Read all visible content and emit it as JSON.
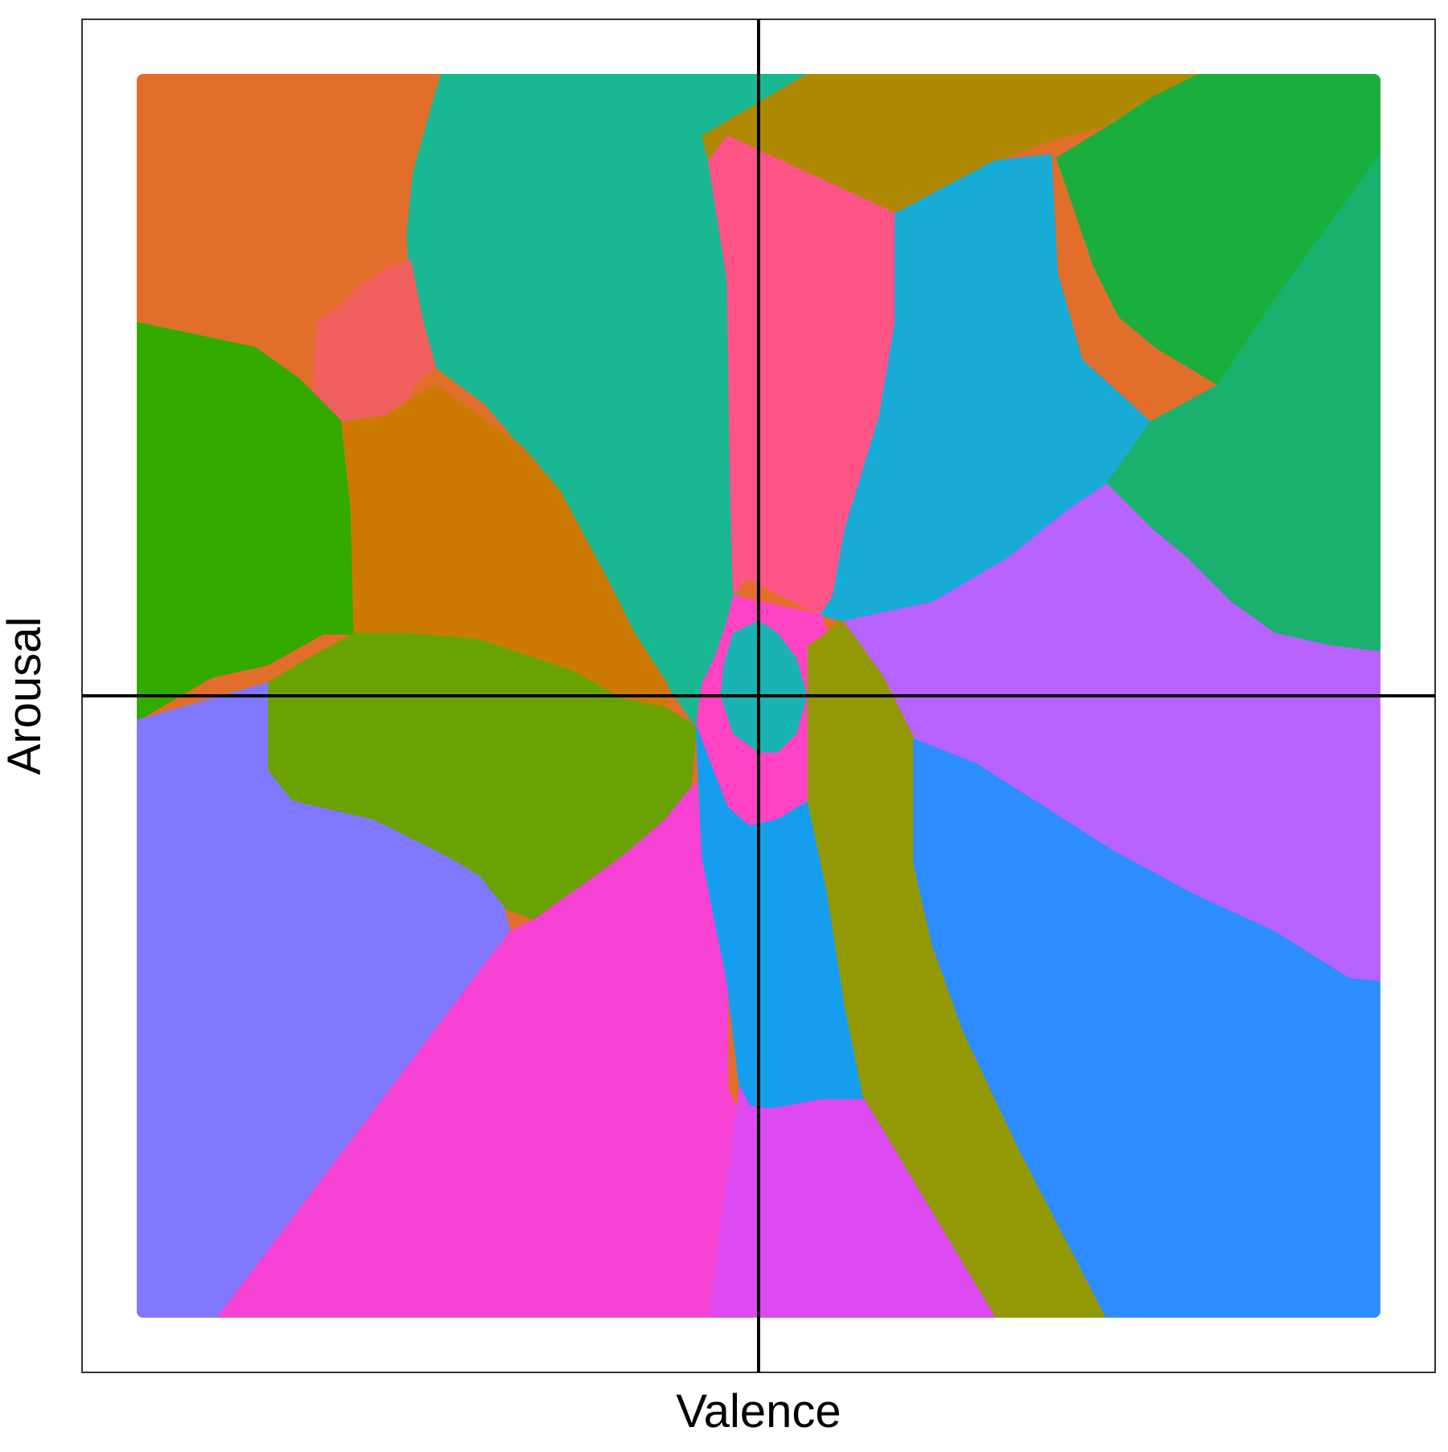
{
  "chart_data": {
    "type": "heatmap",
    "title": "",
    "xlabel": "Valence",
    "ylabel": "Arousal",
    "xlim": [
      -1,
      1
    ],
    "ylim": [
      -1,
      1
    ],
    "grid": false,
    "reference_lines": {
      "x": 0,
      "y": 0
    },
    "region_colors": [
      "#E16E2A",
      "#1AB793",
      "#B08904",
      "#1AAF3C",
      "#F15F5F",
      "#FF5486",
      "#18ABD6",
      "#1AB06D",
      "#33AA00",
      "#CD7A05",
      "#B862FF",
      "#6AA203",
      "#FF43C4",
      "#19B3B3",
      "#8079FF",
      "#F542D2",
      "#169EEE",
      "#939904",
      "#2D8DFF",
      "#DD4AF0"
    ],
    "regions": [
      {
        "color": "#E16E2A",
        "polygon": [
          [
            -1,
            1
          ],
          [
            -0.51,
            1
          ],
          [
            -0.53,
            0.93
          ],
          [
            -0.555,
            0.84
          ],
          [
            -0.565,
            0.74
          ],
          [
            -0.56,
            0.7
          ],
          [
            -0.6,
            0.685
          ],
          [
            -0.64,
            0.66
          ],
          [
            -0.68,
            0.62
          ],
          [
            -0.71,
            0.6
          ],
          [
            -1,
            0.6
          ]
        ]
      },
      {
        "color": "#1AB793",
        "polygon": [
          [
            -0.51,
            1
          ],
          [
            0.08,
            1
          ],
          [
            0.09,
            0.9
          ],
          [
            0.07,
            0.85
          ],
          [
            -0.05,
            0.67
          ],
          [
            -0.035,
            0.16
          ],
          [
            -0.05,
            0.12
          ],
          [
            -0.07,
            0.06
          ],
          [
            -0.1,
            -0.05
          ],
          [
            -0.148,
            0.02
          ],
          [
            -0.2,
            0.1
          ],
          [
            -0.24,
            0.18
          ],
          [
            -0.32,
            0.33
          ],
          [
            -0.38,
            0.4
          ],
          [
            -0.44,
            0.47
          ],
          [
            -0.52,
            0.53
          ],
          [
            -0.555,
            0.56
          ],
          [
            -0.565,
            0.74
          ],
          [
            -0.555,
            0.84
          ],
          [
            -0.53,
            0.93
          ]
        ]
      },
      {
        "color": "#B08904",
        "polygon": [
          [
            0.08,
            1
          ],
          [
            0.71,
            1
          ],
          [
            0.63,
            0.96
          ],
          [
            0.57,
            0.92
          ],
          [
            0.46,
            0.89
          ],
          [
            0.38,
            0.86
          ],
          [
            0.22,
            0.775
          ],
          [
            0.05,
            0.78
          ],
          [
            -0.03,
            0.79
          ],
          [
            -0.08,
            0.86
          ],
          [
            -0.09,
            0.9
          ]
        ]
      },
      {
        "color": "#1AAF3C",
        "polygon": [
          [
            0.71,
            1
          ],
          [
            1,
            1
          ],
          [
            1,
            0.87
          ],
          [
            0.84,
            0.65
          ],
          [
            0.74,
            0.5
          ],
          [
            0.64,
            0.56
          ],
          [
            0.58,
            0.61
          ],
          [
            0.54,
            0.69
          ],
          [
            0.48,
            0.865
          ],
          [
            0.57,
            0.92
          ],
          [
            0.63,
            0.96
          ]
        ]
      },
      {
        "color": "#F15F5F",
        "polygon": [
          [
            -0.71,
            0.6
          ],
          [
            -0.68,
            0.62
          ],
          [
            -0.64,
            0.66
          ],
          [
            -0.6,
            0.685
          ],
          [
            -0.56,
            0.7
          ],
          [
            -0.54,
            0.6
          ],
          [
            -0.52,
            0.53
          ],
          [
            -0.555,
            0.5
          ],
          [
            -0.62,
            0.35
          ],
          [
            -0.7,
            0.36
          ],
          [
            -0.72,
            0.4
          ]
        ]
      },
      {
        "color": "#FF5486",
        "polygon": [
          [
            -0.05,
            0.9
          ],
          [
            0.22,
            0.775
          ],
          [
            0.22,
            0.6
          ],
          [
            0.195,
            0.45
          ],
          [
            0.14,
            0.27
          ],
          [
            0.12,
            0.16
          ],
          [
            0.1,
            0.13
          ],
          [
            -0.02,
            0.19
          ],
          [
            -0.04,
            0.16
          ],
          [
            -0.045,
            0.35
          ],
          [
            -0.05,
            0.67
          ],
          [
            -0.08,
            0.86
          ]
        ]
      },
      {
        "color": "#18ABD6",
        "polygon": [
          [
            0.22,
            0.775
          ],
          [
            0.38,
            0.86
          ],
          [
            0.47,
            0.87
          ],
          [
            0.48,
            0.68
          ],
          [
            0.52,
            0.54
          ],
          [
            0.63,
            0.44
          ],
          [
            0.57,
            0.34
          ],
          [
            0.5,
            0.3
          ],
          [
            0.4,
            0.22
          ],
          [
            0.28,
            0.15
          ],
          [
            0.14,
            0.12
          ],
          [
            0.1,
            0.13
          ],
          [
            0.12,
            0.16
          ],
          [
            0.14,
            0.27
          ],
          [
            0.195,
            0.45
          ],
          [
            0.22,
            0.6
          ]
        ]
      },
      {
        "color": "#1AB06D",
        "polygon": [
          [
            1,
            0.87
          ],
          [
            1,
            0.07
          ],
          [
            0.92,
            0.08
          ],
          [
            0.83,
            0.1
          ],
          [
            0.76,
            0.15
          ],
          [
            0.69,
            0.22
          ],
          [
            0.63,
            0.27
          ],
          [
            0.56,
            0.34
          ],
          [
            0.63,
            0.44
          ],
          [
            0.74,
            0.5
          ],
          [
            0.84,
            0.65
          ]
        ]
      },
      {
        "color": "#33AA00",
        "polygon": [
          [
            -1,
            0.6
          ],
          [
            -0.81,
            0.56
          ],
          [
            -0.74,
            0.51
          ],
          [
            -0.67,
            0.44
          ],
          [
            -0.655,
            0.3
          ],
          [
            -0.65,
            0.1
          ],
          [
            -0.7,
            0.1
          ],
          [
            -0.79,
            0.05
          ],
          [
            -0.88,
            0.03
          ],
          [
            -1,
            -0.04
          ]
        ]
      },
      {
        "color": "#CD7A05",
        "polygon": [
          [
            -0.67,
            0.44
          ],
          [
            -0.6,
            0.45
          ],
          [
            -0.52,
            0.5
          ],
          [
            -0.38,
            0.4
          ],
          [
            -0.32,
            0.33
          ],
          [
            -0.24,
            0.18
          ],
          [
            -0.2,
            0.1
          ],
          [
            -0.148,
            0.02
          ],
          [
            -0.148,
            -0.02
          ],
          [
            -0.19,
            -0.02
          ],
          [
            -0.22,
            -0.005
          ],
          [
            -0.3,
            0.04
          ],
          [
            -0.45,
            0.09
          ],
          [
            -0.56,
            0.1
          ],
          [
            -0.65,
            0.1
          ],
          [
            -0.655,
            0.3
          ]
        ]
      },
      {
        "color": "#B862FF",
        "polygon": [
          [
            0.14,
            0.12
          ],
          [
            0.28,
            0.15
          ],
          [
            0.4,
            0.22
          ],
          [
            0.5,
            0.3
          ],
          [
            0.56,
            0.34
          ],
          [
            0.63,
            0.27
          ],
          [
            0.69,
            0.22
          ],
          [
            0.76,
            0.15
          ],
          [
            0.83,
            0.1
          ],
          [
            0.92,
            0.08
          ],
          [
            1,
            0.07
          ],
          [
            1,
            -0.46
          ],
          [
            0.95,
            -0.455
          ],
          [
            0.83,
            -0.38
          ],
          [
            0.7,
            -0.32
          ],
          [
            0.57,
            -0.25
          ],
          [
            0.46,
            -0.18
          ],
          [
            0.35,
            -0.11
          ],
          [
            0.25,
            -0.07
          ],
          [
            0.2,
            0.03
          ],
          [
            0.15,
            0.1
          ]
        ]
      },
      {
        "color": "#6AA203",
        "polygon": [
          [
            -0.65,
            0.1
          ],
          [
            -0.56,
            0.1
          ],
          [
            -0.45,
            0.09
          ],
          [
            -0.3,
            0.04
          ],
          [
            -0.22,
            -0.005
          ],
          [
            -0.148,
            -0.02
          ],
          [
            -0.1,
            -0.05
          ],
          [
            -0.11,
            -0.15
          ],
          [
            -0.15,
            -0.2
          ],
          [
            -0.22,
            -0.26
          ],
          [
            -0.36,
            -0.36
          ],
          [
            -0.41,
            -0.34
          ],
          [
            -0.45,
            -0.29
          ],
          [
            -0.5,
            -0.26
          ],
          [
            -0.62,
            -0.2
          ],
          [
            -0.75,
            -0.17
          ],
          [
            -0.79,
            -0.12
          ],
          [
            -0.79,
            0.02
          ],
          [
            -0.74,
            0.05
          ]
        ]
      },
      {
        "color": "#FF43C4",
        "polygon": [
          [
            -0.04,
            0.16
          ],
          [
            0.1,
            0.13
          ],
          [
            0.11,
            0.1
          ],
          [
            0.08,
            0.08
          ],
          [
            0.08,
            -0.17
          ],
          [
            0.03,
            -0.2
          ],
          [
            -0.015,
            -0.21
          ],
          [
            -0.05,
            -0.18
          ],
          [
            -0.07,
            -0.13
          ],
          [
            -0.1,
            -0.05
          ],
          [
            -0.09,
            0.02
          ],
          [
            -0.07,
            0.06
          ],
          [
            -0.05,
            0.12
          ]
        ]
      },
      {
        "color": "#19B3B3",
        "polygon": [
          [
            0,
            0.12
          ],
          [
            0.03,
            0.1
          ],
          [
            0.06,
            0.06
          ],
          [
            0.077,
            0
          ],
          [
            0.06,
            -0.06
          ],
          [
            0.03,
            -0.09
          ],
          [
            0,
            -0.09
          ],
          [
            -0.04,
            -0.06
          ],
          [
            -0.06,
            0
          ],
          [
            -0.055,
            0.05
          ],
          [
            -0.04,
            0.1
          ]
        ]
      },
      {
        "color": "#8079FF",
        "polygon": [
          [
            -1,
            -0.04
          ],
          [
            -0.79,
            0.02
          ],
          [
            -0.79,
            -0.12
          ],
          [
            -0.75,
            -0.17
          ],
          [
            -0.62,
            -0.2
          ],
          [
            -0.5,
            -0.26
          ],
          [
            -0.45,
            -0.29
          ],
          [
            -0.41,
            -0.34
          ],
          [
            -0.4,
            -0.38
          ],
          [
            -0.87,
            -1
          ],
          [
            -1,
            -1
          ]
        ]
      },
      {
        "color": "#F542D2",
        "polygon": [
          [
            -0.87,
            -1
          ],
          [
            -0.08,
            -1
          ],
          [
            -0.03,
            -0.68
          ],
          [
            -0.05,
            -0.63
          ],
          [
            -0.05,
            -0.46
          ],
          [
            -0.09,
            -0.26
          ],
          [
            -0.1,
            -0.14
          ],
          [
            -0.11,
            -0.15
          ],
          [
            -0.15,
            -0.2
          ],
          [
            -0.22,
            -0.26
          ],
          [
            -0.36,
            -0.36
          ],
          [
            -0.4,
            -0.38
          ]
        ]
      },
      {
        "color": "#169EEE",
        "polygon": [
          [
            -0.1,
            -0.05
          ],
          [
            -0.07,
            -0.13
          ],
          [
            -0.05,
            -0.18
          ],
          [
            -0.015,
            -0.21
          ],
          [
            0.03,
            -0.2
          ],
          [
            0.08,
            -0.17
          ],
          [
            0.11,
            -0.31
          ],
          [
            0.14,
            -0.5
          ],
          [
            0.17,
            -0.65
          ],
          [
            0.1,
            -0.65
          ],
          [
            0.02,
            -0.665
          ],
          [
            -0.015,
            -0.66
          ],
          [
            -0.03,
            -0.63
          ],
          [
            -0.05,
            -0.46
          ],
          [
            -0.09,
            -0.26
          ]
        ]
      },
      {
        "color": "#939904",
        "polygon": [
          [
            0.11,
            0.1
          ],
          [
            0.13,
            0.12
          ],
          [
            0.15,
            0.1
          ],
          [
            0.2,
            0.03
          ],
          [
            0.25,
            -0.07
          ],
          [
            0.25,
            -0.27
          ],
          [
            0.28,
            -0.4
          ],
          [
            0.33,
            -0.54
          ],
          [
            0.42,
            -0.73
          ],
          [
            0.56,
            -1
          ],
          [
            0.38,
            -1
          ],
          [
            0.17,
            -0.65
          ],
          [
            0.14,
            -0.5
          ],
          [
            0.11,
            -0.31
          ],
          [
            0.08,
            -0.17
          ],
          [
            0.08,
            0.08
          ]
        ]
      },
      {
        "color": "#2D8DFF",
        "polygon": [
          [
            0.25,
            -0.07
          ],
          [
            0.35,
            -0.11
          ],
          [
            0.46,
            -0.18
          ],
          [
            0.57,
            -0.25
          ],
          [
            0.7,
            -0.32
          ],
          [
            0.83,
            -0.38
          ],
          [
            0.95,
            -0.455
          ],
          [
            1,
            -0.46
          ],
          [
            1,
            -1
          ],
          [
            0.56,
            -1
          ],
          [
            0.42,
            -0.73
          ],
          [
            0.33,
            -0.54
          ],
          [
            0.28,
            -0.4
          ],
          [
            0.25,
            -0.27
          ]
        ]
      },
      {
        "color": "#DD4AF0",
        "polygon": [
          [
            -0.08,
            -1
          ],
          [
            0.38,
            -1
          ],
          [
            0.17,
            -0.65
          ],
          [
            0.1,
            -0.65
          ],
          [
            0.02,
            -0.665
          ],
          [
            -0.015,
            -0.66
          ],
          [
            -0.03,
            -0.63
          ]
        ]
      }
    ]
  }
}
